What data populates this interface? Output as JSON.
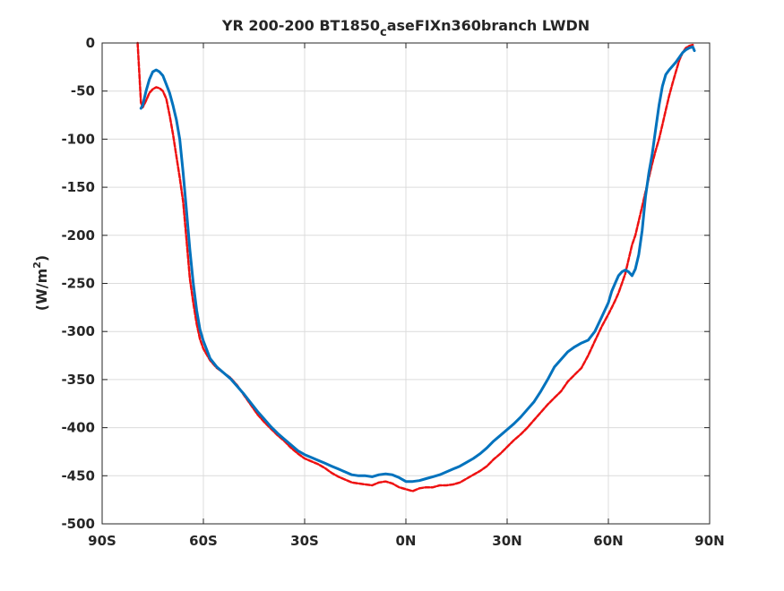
{
  "chart_data": {
    "type": "line",
    "title": {
      "main": "YR 200-200 BT1850",
      "subscript": "c",
      "rest": "aseFIXn360branch LWDN"
    },
    "xlabel": "",
    "ylabel": {
      "main": "(W/m",
      "superscript": "2",
      "close": ")"
    },
    "xlim": [
      -90,
      90
    ],
    "ylim": [
      -500,
      0
    ],
    "xticks": [
      -90,
      -60,
      -30,
      0,
      30,
      60,
      90
    ],
    "xtick_labels": [
      "90S",
      "60S",
      "30S",
      "0N",
      "30N",
      "60N",
      "90N"
    ],
    "yticks": [
      0,
      -50,
      -100,
      -150,
      -200,
      -250,
      -300,
      -350,
      -400,
      -450,
      -500
    ],
    "ytick_labels": [
      "0",
      "-50",
      "-100",
      "-150",
      "-200",
      "-250",
      "-300",
      "-350",
      "-400",
      "-450",
      "-500"
    ],
    "grid": true,
    "legend": "none",
    "series": [
      {
        "color": "#0072BD",
        "style": "solid",
        "x": [
          -78.5,
          -78,
          -77,
          -76,
          -75,
          -74,
          -73,
          -72,
          -71,
          -70,
          -69,
          -68,
          -67,
          -66,
          -65,
          -64,
          -63,
          -62,
          -61,
          -60,
          -58,
          -56,
          -54,
          -52,
          -50,
          -48,
          -46,
          -44,
          -42,
          -40,
          -38,
          -36,
          -34,
          -32,
          -30,
          -28,
          -26,
          -24,
          -22,
          -20,
          -18,
          -16,
          -14,
          -12,
          -10,
          -8,
          -6,
          -4,
          -2,
          0,
          2,
          4,
          6,
          8,
          10,
          12,
          14,
          16,
          18,
          20,
          22,
          24,
          26,
          28,
          30,
          32,
          34,
          36,
          38,
          40,
          42,
          44,
          46,
          48,
          50,
          52,
          54,
          56,
          58,
          60,
          61,
          62,
          63,
          64,
          65,
          66,
          67,
          68,
          69,
          70,
          71,
          72,
          73,
          74,
          75,
          76,
          77,
          78,
          79,
          80,
          81,
          82,
          83,
          84,
          85,
          85.5
        ],
        "y": [
          -68,
          -65,
          -50,
          -38,
          -30,
          -28,
          -30,
          -34,
          -43,
          -52,
          -65,
          -80,
          -100,
          -135,
          -175,
          -215,
          -250,
          -278,
          -298,
          -310,
          -328,
          -337,
          -343,
          -349,
          -357,
          -365,
          -374,
          -383,
          -391,
          -399,
          -406,
          -412,
          -418,
          -424,
          -428,
          -431,
          -434,
          -437,
          -440,
          -443,
          -446,
          -449,
          -450,
          -450,
          -451,
          -449,
          -448,
          -449,
          -452,
          -456,
          -456,
          -455,
          -453,
          -451,
          -449,
          -446,
          -443,
          -440,
          -436,
          -432,
          -427,
          -421,
          -414,
          -408,
          -402,
          -396,
          -389,
          -381,
          -373,
          -362,
          -350,
          -337,
          -329,
          -321,
          -316,
          -312,
          -309,
          -300,
          -285,
          -270,
          -258,
          -250,
          -242,
          -238,
          -236,
          -238,
          -242,
          -235,
          -220,
          -195,
          -160,
          -135,
          -115,
          -90,
          -65,
          -45,
          -33,
          -28,
          -24,
          -20,
          -15,
          -10,
          -7,
          -5,
          -4,
          -8
        ]
      },
      {
        "color": "#EE1111",
        "style": "dashed",
        "x": [
          -79.5,
          -79,
          -78.5,
          -78,
          -77,
          -76,
          -75,
          -74,
          -73,
          -72,
          -71,
          -70,
          -69,
          -68,
          -67,
          -66,
          -65,
          -64,
          -63,
          -62,
          -61,
          -60,
          -58,
          -56,
          -54,
          -52,
          -50,
          -48,
          -46,
          -44,
          -42,
          -40,
          -38,
          -36,
          -34,
          -32,
          -30,
          -28,
          -26,
          -24,
          -22,
          -20,
          -18,
          -16,
          -14,
          -12,
          -10,
          -8,
          -6,
          -4,
          -2,
          0,
          2,
          4,
          6,
          8,
          10,
          12,
          14,
          16,
          18,
          20,
          22,
          24,
          26,
          28,
          30,
          32,
          34,
          36,
          38,
          40,
          42,
          44,
          46,
          48,
          50,
          52,
          54,
          56,
          58,
          60,
          61,
          62,
          63,
          64,
          65,
          66,
          67,
          68,
          69,
          70,
          71,
          72,
          73,
          74,
          75,
          76,
          77,
          78,
          79,
          80,
          81,
          82,
          83,
          84,
          85
        ],
        "y": [
          0,
          -30,
          -62,
          -67,
          -60,
          -52,
          -48,
          -46,
          -47,
          -50,
          -58,
          -75,
          -95,
          -118,
          -140,
          -165,
          -205,
          -245,
          -270,
          -292,
          -308,
          -318,
          -330,
          -338,
          -343,
          -348,
          -356,
          -366,
          -376,
          -386,
          -394,
          -401,
          -408,
          -414,
          -421,
          -427,
          -432,
          -435,
          -438,
          -442,
          -447,
          -451,
          -454,
          -457,
          -458,
          -459,
          -460,
          -457,
          -456,
          -458,
          -462,
          -464,
          -466,
          -463,
          -462,
          -462,
          -460,
          -460,
          -459,
          -457,
          -453,
          -449,
          -445,
          -440,
          -433,
          -427,
          -420,
          -413,
          -407,
          -400,
          -392,
          -384,
          -376,
          -369,
          -362,
          -352,
          -345,
          -338,
          -325,
          -310,
          -295,
          -282,
          -275,
          -268,
          -260,
          -250,
          -240,
          -225,
          -210,
          -200,
          -185,
          -170,
          -155,
          -140,
          -125,
          -112,
          -100,
          -85,
          -70,
          -55,
          -42,
          -30,
          -18,
          -10,
          -5,
          -3,
          -2
        ]
      }
    ]
  }
}
